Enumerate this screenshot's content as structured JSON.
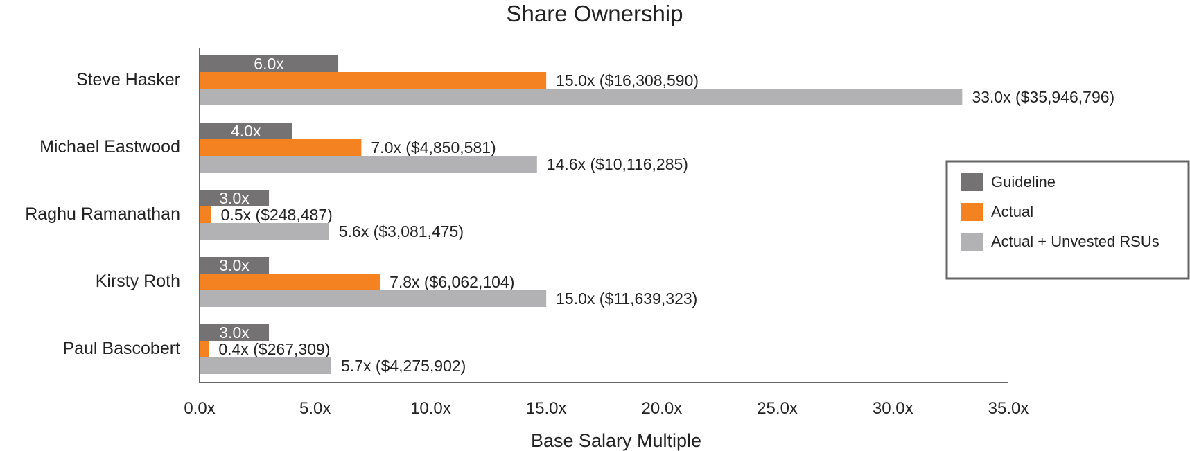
{
  "chart_data": {
    "type": "bar",
    "orientation": "horizontal",
    "title": "Share Ownership",
    "xlabel": "Base Salary Multiple",
    "ylabel": "",
    "xlim": [
      0,
      35
    ],
    "x_ticks": [
      "0.0x",
      "5.0x",
      "10.0x",
      "15.0x",
      "20.0x",
      "25.0x",
      "30.0x",
      "35.0x"
    ],
    "x_tick_values": [
      0,
      5,
      10,
      15,
      20,
      25,
      30,
      35
    ],
    "categories": [
      "Steve Hasker",
      "Michael Eastwood",
      "Raghu Ramanathan",
      "Kirsty Roth",
      "Paul Bascobert"
    ],
    "legend_position": "right",
    "series": [
      {
        "name": "Guideline",
        "color": "#757273",
        "values": [
          6.0,
          4.0,
          3.0,
          3.0,
          3.0
        ],
        "labels": [
          "6.0x",
          "4.0x",
          "3.0x",
          "3.0x",
          "3.0x"
        ],
        "label_position": "inside"
      },
      {
        "name": "Actual",
        "color": "#f58220",
        "values": [
          15.0,
          7.0,
          0.5,
          7.8,
          0.4
        ],
        "labels": [
          "15.0x ($16,308,590)",
          "7.0x ($4,850,581)",
          "0.5x ($248,487)",
          "7.8x ($6,062,104)",
          "0.4x ($267,309)"
        ],
        "label_position": "outside"
      },
      {
        "name": "Actual + Unvested RSUs",
        "color": "#b2b2b4",
        "values": [
          33.0,
          14.6,
          5.6,
          15.0,
          5.7
        ],
        "labels": [
          "33.0x ($35,946,796)",
          "14.6x ($10,116,285)",
          "5.6x ($3,081,475)",
          "15.0x ($11,639,323)",
          "5.7x ($4,275,902)"
        ],
        "label_position": "outside"
      }
    ]
  }
}
